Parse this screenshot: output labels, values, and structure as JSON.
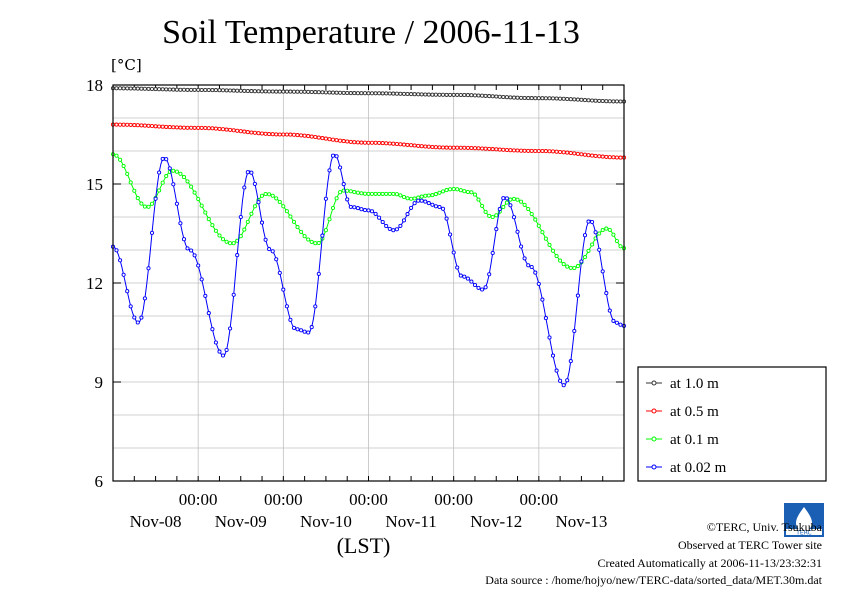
{
  "page": {
    "title": "Soil Temperature / 2006-11-13",
    "credit": "©TERC, Univ. Tsukuba",
    "observed": "Observed at TERC Tower site",
    "created": "Created Automatically at 2006-11-13/23:32:31",
    "source": "Data source : /home/hojyo/new/TERC-data/sorted_data/MET.30m.dat",
    "logo_text": "TERC"
  },
  "chart_data": {
    "type": "line",
    "title": "Soil Temperature / 2006-11-13",
    "ylabel": "[°C]",
    "xlabel": "(LST)",
    "ylim": [
      6,
      18
    ],
    "yticks": [
      6,
      9,
      12,
      15,
      18
    ],
    "xlim": [
      0,
      6
    ],
    "time_ticks": [
      1,
      2,
      3,
      4,
      5
    ],
    "time_tick_label": "00:00",
    "day_labels": [
      {
        "x": 0.5,
        "label": "Nov-08"
      },
      {
        "x": 1.5,
        "label": "Nov-09"
      },
      {
        "x": 2.5,
        "label": "Nov-10"
      },
      {
        "x": 3.5,
        "label": "Nov-11"
      },
      {
        "x": 4.5,
        "label": "Nov-12"
      },
      {
        "x": 5.5,
        "label": "Nov-13"
      }
    ],
    "grid": true,
    "legend_position": "right",
    "series": [
      {
        "name": "at 1.0 m",
        "color": "#333333",
        "knots": [
          [
            0,
            17.9
          ],
          [
            1,
            17.85
          ],
          [
            2,
            17.8
          ],
          [
            3,
            17.75
          ],
          [
            4,
            17.7
          ],
          [
            5,
            17.6
          ],
          [
            6,
            17.5
          ]
        ]
      },
      {
        "name": "at 0.5 m",
        "color": "#ff0000",
        "knots": [
          [
            0,
            16.8
          ],
          [
            1,
            16.7
          ],
          [
            2,
            16.5
          ],
          [
            3,
            16.25
          ],
          [
            4,
            16.1
          ],
          [
            5,
            16.0
          ],
          [
            6,
            15.8
          ]
        ]
      },
      {
        "name": "at 0.1 m",
        "color": "#00ff00",
        "knots": [
          [
            0,
            15.9
          ],
          [
            0.4,
            14.3
          ],
          [
            0.7,
            15.4
          ],
          [
            1.4,
            13.2
          ],
          [
            1.8,
            14.7
          ],
          [
            2.4,
            13.2
          ],
          [
            2.7,
            14.8
          ],
          [
            3.0,
            14.7
          ],
          [
            3.3,
            14.7
          ],
          [
            3.5,
            14.55
          ],
          [
            3.7,
            14.65
          ],
          [
            4.0,
            14.85
          ],
          [
            4.2,
            14.75
          ],
          [
            4.45,
            14.0
          ],
          [
            4.7,
            14.55
          ],
          [
            5.4,
            12.45
          ],
          [
            5.8,
            13.65
          ],
          [
            6.0,
            13.05
          ]
        ]
      },
      {
        "name": "at 0.02 m",
        "color": "#0000ff",
        "knots": [
          [
            0,
            13.1
          ],
          [
            0.3,
            10.8
          ],
          [
            0.6,
            15.8
          ],
          [
            0.9,
            13.0
          ],
          [
            1.3,
            9.8
          ],
          [
            1.6,
            15.4
          ],
          [
            1.85,
            13.0
          ],
          [
            2.15,
            10.6
          ],
          [
            2.3,
            10.5
          ],
          [
            2.6,
            15.9
          ],
          [
            2.8,
            14.3
          ],
          [
            3.0,
            14.2
          ],
          [
            3.3,
            13.6
          ],
          [
            3.6,
            14.5
          ],
          [
            3.85,
            14.3
          ],
          [
            4.1,
            12.2
          ],
          [
            4.35,
            11.8
          ],
          [
            4.6,
            14.6
          ],
          [
            4.9,
            12.5
          ],
          [
            5.3,
            8.9
          ],
          [
            5.6,
            13.9
          ],
          [
            5.9,
            10.8
          ],
          [
            6.0,
            10.7
          ]
        ]
      }
    ]
  }
}
